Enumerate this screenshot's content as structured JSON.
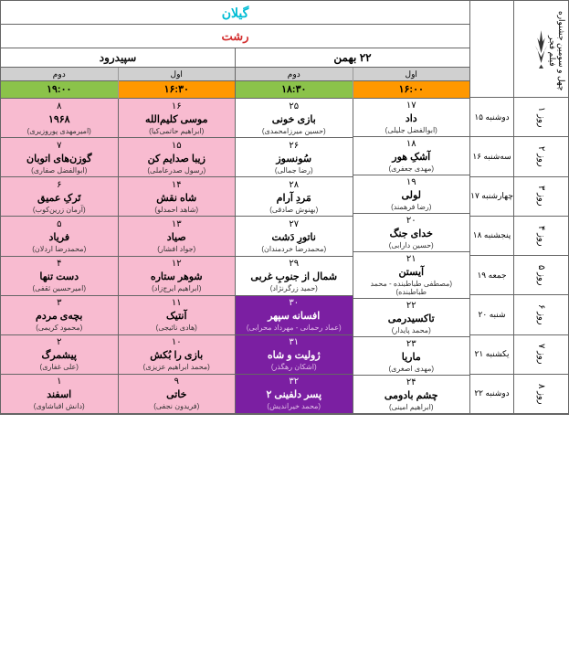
{
  "festival_title": "چهل و سومین جشنواره فیلم فجر",
  "province": "گیلان",
  "city": "رشت",
  "venues": [
    {
      "name": "۲۲ بهمن",
      "color": "#000"
    },
    {
      "name": "سپیدرود",
      "color": "#000"
    }
  ],
  "screens": [
    {
      "label": "اول",
      "time": "۱۶:۰۰",
      "time_bg": "time-orange"
    },
    {
      "label": "دوم",
      "time": "۱۸:۳۰",
      "time_bg": "time-green"
    },
    {
      "label": "اول",
      "time": "۱۶:۳۰",
      "time_bg": "time-orange"
    },
    {
      "label": "دوم",
      "time": "۱۹:۰۰",
      "time_bg": "time-green"
    }
  ],
  "days": [
    {
      "label": "روز ۱",
      "date": "دوشنبه ۱۵"
    },
    {
      "label": "روز ۲",
      "date": "سه‌شنبه ۱۶"
    },
    {
      "label": "روز ۳",
      "date": "چهارشنبه ۱۷"
    },
    {
      "label": "روز ۴",
      "date": "پنجشنبه ۱۸"
    },
    {
      "label": "روز ۵",
      "date": "جمعه ۱۹"
    },
    {
      "label": "روز ۶",
      "date": "شنبه ۲۰"
    },
    {
      "label": "روز ۷",
      "date": "یکشنبه ۲۱"
    },
    {
      "label": "روز ۸",
      "date": "دوشنبه ۲۲"
    }
  ],
  "columns": [
    [
      {
        "num": "۱۷",
        "title": "داد",
        "director": "(ابوالفضل جلیلی)",
        "bg": "bg-white"
      },
      {
        "num": "۱۸",
        "title": "آشکِ هور",
        "director": "(مهدی جعفری)",
        "bg": "bg-white"
      },
      {
        "num": "۱۹",
        "title": "لولی",
        "director": "(رضا فرهمند)",
        "bg": "bg-white"
      },
      {
        "num": "۲۰",
        "title": "خدای جنگ",
        "director": "(حسین دارابی)",
        "bg": "bg-white"
      },
      {
        "num": "۲۱",
        "title": "آیستن",
        "director": "(مصطفی طباطبنده - محمد طباطبنده)",
        "bg": "bg-white"
      },
      {
        "num": "۲۲",
        "title": "تاکسیدرمی",
        "director": "(محمد پایدار)",
        "bg": "bg-white"
      },
      {
        "num": "۲۳",
        "title": "ماریا",
        "director": "(مهدی اصغری)",
        "bg": "bg-white"
      },
      {
        "num": "۲۴",
        "title": "چشم بادومی",
        "director": "(ابراهیم امینی)",
        "bg": "bg-white"
      }
    ],
    [
      {
        "num": "۲۵",
        "title": "بازی خونی",
        "director": "(حسین میرزامحمدی)",
        "bg": "bg-white"
      },
      {
        "num": "۲۶",
        "title": "سُونسوز",
        "director": "(رضا جمالی)",
        "bg": "bg-white"
      },
      {
        "num": "۲۸",
        "title": "مَردِ آرام",
        "director": "(بهنوش صادقی)",
        "bg": "bg-white"
      },
      {
        "num": "۲۷",
        "title": "ناتورِ دَشت",
        "director": "(محمدرضا خردمندان)",
        "bg": "bg-white"
      },
      {
        "num": "۲۹",
        "title": "شمال از جنوبِ غربی",
        "director": "(حمید زرگرنژاد)",
        "bg": "bg-white"
      },
      {
        "num": "۳۰",
        "title": "افسانه سپهر",
        "director": "(عماد رحمانی - مهرداد محرابی)",
        "bg": "bg-purple"
      },
      {
        "num": "۳۱",
        "title": "ژولیت و شاه",
        "director": "(اشکان رهگذر)",
        "bg": "bg-purple"
      },
      {
        "num": "۳۲",
        "title": "پسر دلفینی ۲",
        "director": "(محمد خیراندیش)",
        "bg": "bg-purple"
      }
    ],
    [
      {
        "num": "۱۶",
        "title": "موسی کلیم‌الله",
        "director": "(ابراهیم حاتمی‌کیا)",
        "bg": "bg-pink"
      },
      {
        "num": "۱۵",
        "title": "زیبا صدایم کن",
        "director": "(رسول صدرعاملی)",
        "bg": "bg-pink"
      },
      {
        "num": "۱۴",
        "title": "شاه نقش",
        "director": "(شاهد احمدلو)",
        "bg": "bg-pink"
      },
      {
        "num": "۱۳",
        "title": "صیاد",
        "director": "(جواد افشار)",
        "bg": "bg-pink"
      },
      {
        "num": "۱۲",
        "title": "شوهر ستاره",
        "director": "(ابراهیم ایرج‌زاد)",
        "bg": "bg-pink"
      },
      {
        "num": "۱۱",
        "title": "آنتیک",
        "director": "(هادی نائیجی)",
        "bg": "bg-pink"
      },
      {
        "num": "۱۰",
        "title": "بازی را بُکش",
        "director": "(محمد ابراهیم عزیزی)",
        "bg": "bg-pink"
      },
      {
        "num": "۹",
        "title": "خاتی",
        "director": "(فریدون نجفی)",
        "bg": "bg-pink"
      }
    ],
    [
      {
        "num": "۸",
        "title": "۱۹۶۸",
        "director": "(امیرمهدی پوروزیری)",
        "bg": "bg-pink"
      },
      {
        "num": "۷",
        "title": "گوزن‌های اتوبان",
        "director": "(ابوالفضل صفاری)",
        "bg": "bg-pink"
      },
      {
        "num": "۶",
        "title": "تَرکِ عمیق",
        "director": "(آرمان زرین‌کوب)",
        "bg": "bg-pink"
      },
      {
        "num": "۵",
        "title": "فریاد",
        "director": "(محمدرضا اردلان)",
        "bg": "bg-pink"
      },
      {
        "num": "۴",
        "title": "دست تنها",
        "director": "(امیرحسین ثقفی)",
        "bg": "bg-pink"
      },
      {
        "num": "۳",
        "title": "بچه‌ی مردم",
        "director": "(محمود کریمی)",
        "bg": "bg-pink"
      },
      {
        "num": "۲",
        "title": "پیشمرگ",
        "director": "(علی غفاری)",
        "bg": "bg-pink"
      },
      {
        "num": "۱",
        "title": "اسفند",
        "director": "(دانش اقباشاوی)",
        "bg": "bg-pink"
      }
    ]
  ],
  "colors": {
    "province": "#00bcd4",
    "city": "#d32f2f",
    "pink": "#f8bbd0",
    "purple": "#7b1fa2",
    "orange": "#ff9800",
    "green": "#8bc34a",
    "gray": "#d0d0d0"
  }
}
